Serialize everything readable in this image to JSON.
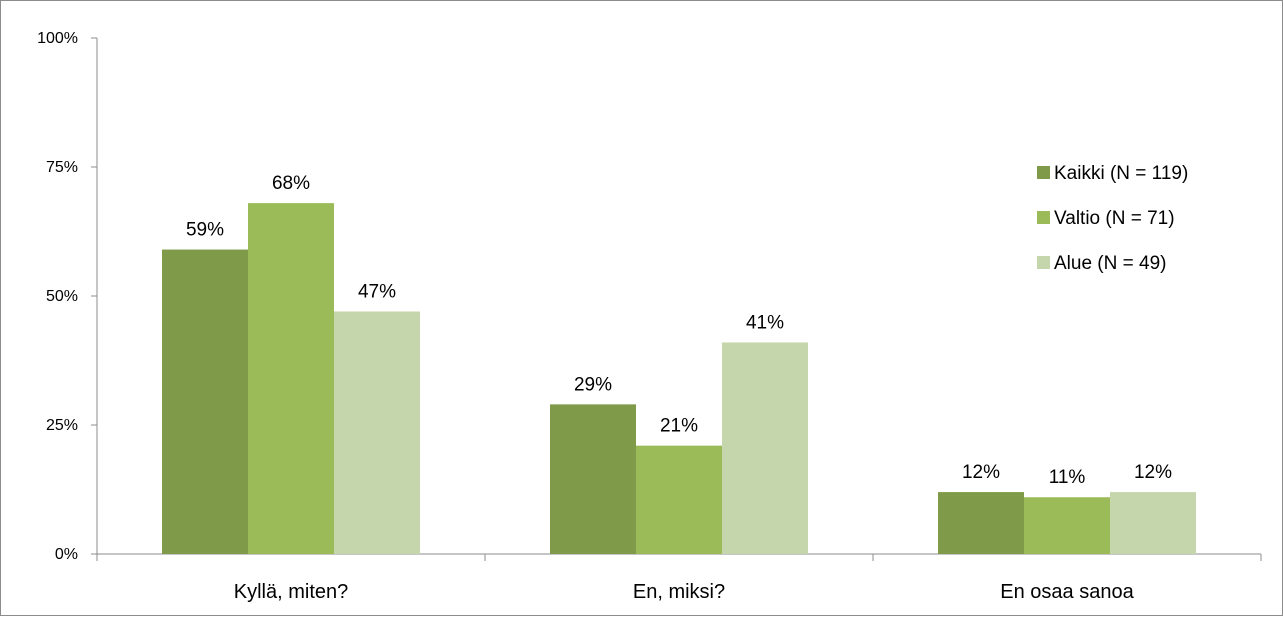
{
  "chart_data": {
    "type": "bar",
    "categories": [
      "Kyllä, miten?",
      "En, miksi?",
      "En osaa sanoa"
    ],
    "series": [
      {
        "name": "Kaikki (N = 119)",
        "values": [
          59,
          29,
          12
        ],
        "labels": [
          "59%",
          "29%",
          "12%"
        ],
        "color": "#7f9a48"
      },
      {
        "name": "Valtio (N = 71)",
        "values": [
          68,
          21,
          11
        ],
        "labels": [
          "68%",
          "21%",
          "11%"
        ],
        "color": "#9bbb59"
      },
      {
        "name": "Alue (N = 49)",
        "values": [
          47,
          41,
          12
        ],
        "labels": [
          "47%",
          "41%",
          "12%"
        ],
        "color": "#c6d6ac"
      }
    ],
    "ylim": [
      0,
      100
    ],
    "yticks": [
      0,
      25,
      50,
      75,
      100
    ],
    "ytick_labels": [
      "0%",
      "25%",
      "50%",
      "75%",
      "100%"
    ],
    "title": "",
    "xlabel": "",
    "ylabel": "",
    "grid": false,
    "legend_position": "right"
  }
}
